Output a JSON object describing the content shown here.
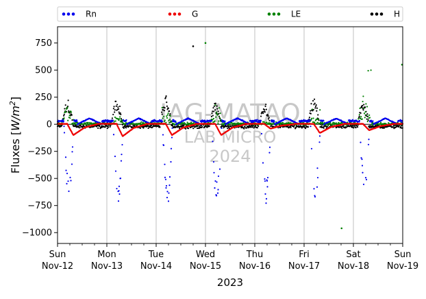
{
  "chart_data": {
    "type": "scatter",
    "title": "",
    "ylabel_prefix": "Fluxes [",
    "ylabel_unit": "W/m",
    "ylabel_exp": "2",
    "ylabel_suffix": "]",
    "xlabel": "2023",
    "ylim": [
      -1100,
      900
    ],
    "yticks": [
      750,
      500,
      250,
      0,
      -250,
      -500,
      -750,
      -1000
    ],
    "ytick_labels": [
      "750",
      "500",
      "250",
      "0",
      "−250",
      "−500",
      "−750",
      "−1000"
    ],
    "xlim": [
      "2023-11-12",
      "2023-11-19"
    ],
    "xticks": [
      {
        "date": "2023-11-12",
        "day": "Sun",
        "label": "Nov-12"
      },
      {
        "date": "2023-11-13",
        "day": "Mon",
        "label": "Nov-13"
      },
      {
        "date": "2023-11-14",
        "day": "Tue",
        "label": "Nov-14"
      },
      {
        "date": "2023-11-15",
        "day": "Wed",
        "label": "Nov-15"
      },
      {
        "date": "2023-11-16",
        "day": "Thu",
        "label": "Nov-16"
      },
      {
        "date": "2023-11-17",
        "day": "Fri",
        "label": "Nov-17"
      },
      {
        "date": "2023-11-18",
        "day": "Sat",
        "label": "Nov-18"
      },
      {
        "date": "2023-11-19",
        "day": "Sun",
        "label": "Nov-19"
      }
    ],
    "grid": "x",
    "zero_line": true,
    "legend_placement": "top, outside plot",
    "series": [
      {
        "name": "Rn",
        "color": "#0000ee",
        "daily_min": [
          -740,
          -720,
          -780,
          -760,
          -740,
          -700,
          -700
        ]
      },
      {
        "name": "G",
        "color": "#ee0000",
        "daily_min": [
          -100,
          -110,
          -100,
          -100,
          -40,
          -80,
          -55
        ]
      },
      {
        "name": "LE",
        "color": "#008000",
        "daily_max": [
          340,
          170,
          210,
          390,
          40,
          170,
          550
        ]
      },
      {
        "name": "H",
        "color": "#000000",
        "daily_max": [
          250,
          260,
          300,
          230,
          210,
          260,
          230
        ]
      }
    ],
    "outliers": [
      {
        "series": "H",
        "x": "2023-11-14T18:00",
        "y": 720
      },
      {
        "series": "LE",
        "x": "2023-11-15T00:00",
        "y": 750
      },
      {
        "series": "LE",
        "x": "2023-11-17T18:15",
        "y": -960
      },
      {
        "series": "LE",
        "x": "2023-11-18T23:40",
        "y": 550
      }
    ],
    "watermark": [
      "IAG-MATAO",
      "LAB MICRO",
      "2024"
    ]
  }
}
